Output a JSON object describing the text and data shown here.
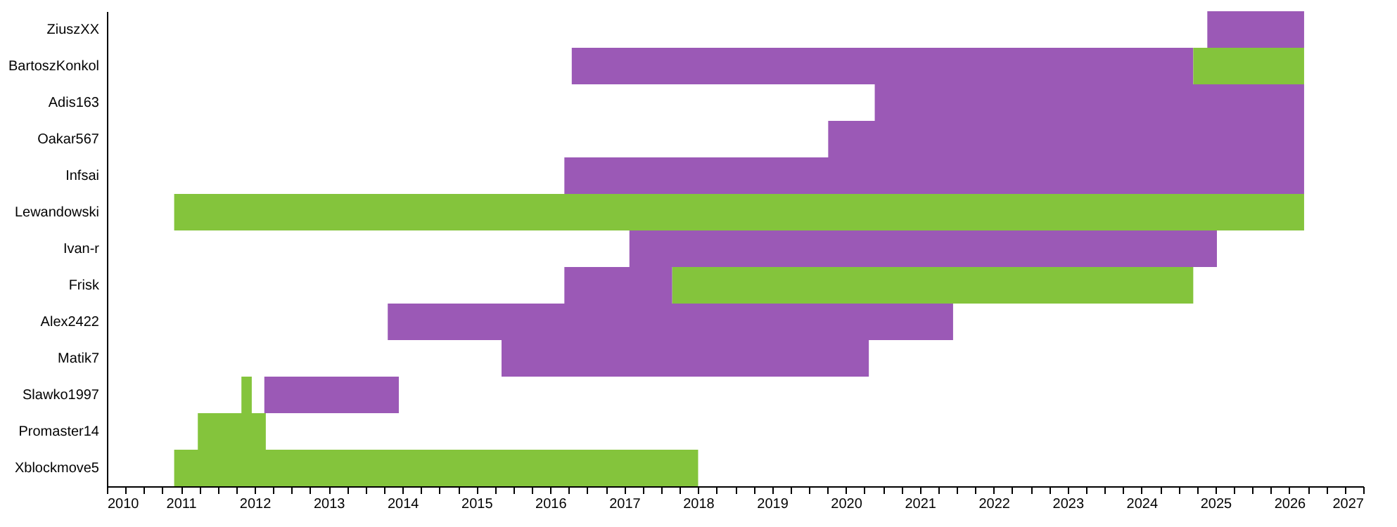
{
  "chart_data": {
    "type": "bar",
    "orientation": "horizontal",
    "categories": [
      "ZiuszXX",
      "BartoszKonkol",
      "Adis163",
      "Oakar567",
      "Infsai",
      "Lewandowski",
      "Ivan-r",
      "Frisk",
      "Alex2422",
      "Matik7",
      "Slawko1997",
      "Promaster14",
      "Xblockmove5"
    ],
    "series": [
      {
        "color": "#9b59b6",
        "base": [
          2024.89,
          2016.29,
          2020.39,
          2019.76,
          2016.19,
          null,
          2017.07,
          2016.19,
          2013.8,
          2015.34,
          2012.13,
          null,
          null
        ],
        "values": [
          1.31,
          8.41,
          5.81,
          6.44,
          10.01,
          null,
          7.95,
          1.46,
          7.65,
          4.97,
          1.82,
          null,
          null
        ]
      },
      {
        "color": "#84c43c",
        "base": [
          null,
          2024.7,
          null,
          null,
          null,
          2010.91,
          null,
          2017.65,
          null,
          null,
          2011.82,
          2011.23,
          2010.91
        ],
        "values": [
          null,
          1.5,
          null,
          null,
          null,
          15.29,
          null,
          7.05,
          null,
          null,
          0.14,
          0.92,
          7.09
        ]
      }
    ],
    "xlim": [
      2010,
      2027
    ],
    "xticks": [
      2010,
      {
        "value": 2010.25,
        "label": null
      },
      {
        "value": 2010.5,
        "label": null
      },
      {
        "value": 2010.75,
        "label": null
      },
      2011,
      {
        "value": 2011.25,
        "label": null
      },
      {
        "value": 2011.5,
        "label": null
      },
      {
        "value": 2011.75,
        "label": null
      },
      2012,
      {
        "value": 2012.25,
        "label": null
      },
      {
        "value": 2012.5,
        "label": null
      },
      {
        "value": 2012.75,
        "label": null
      },
      2013,
      {
        "value": 2013.25,
        "label": null
      },
      {
        "value": 2013.5,
        "label": null
      },
      {
        "value": 2013.75,
        "label": null
      },
      2014,
      {
        "value": 2014.25,
        "label": null
      },
      {
        "value": 2014.5,
        "label": null
      },
      {
        "value": 2014.75,
        "label": null
      },
      2015,
      {
        "value": 2015.25,
        "label": null
      },
      {
        "value": 2015.5,
        "label": null
      },
      {
        "value": 2015.75,
        "label": null
      },
      2016,
      {
        "value": 2016.25,
        "label": null
      },
      {
        "value": 2016.5,
        "label": null
      },
      {
        "value": 2016.75,
        "label": null
      },
      2017,
      {
        "value": 2017.25,
        "label": null
      },
      {
        "value": 2017.5,
        "label": null
      },
      {
        "value": 2017.75,
        "label": null
      },
      2018,
      {
        "value": 2018.25,
        "label": null
      },
      {
        "value": 2018.5,
        "label": null
      },
      {
        "value": 2018.75,
        "label": null
      },
      2019,
      {
        "value": 2019.25,
        "label": null
      },
      {
        "value": 2019.5,
        "label": null
      },
      {
        "value": 2019.75,
        "label": null
      },
      2020,
      {
        "value": 2020.25,
        "label": null
      },
      {
        "value": 2020.5,
        "label": null
      },
      {
        "value": 2020.75,
        "label": null
      },
      2021,
      {
        "value": 2021.25,
        "label": null
      },
      {
        "value": 2021.5,
        "label": null
      },
      {
        "value": 2021.75,
        "label": null
      },
      2022,
      {
        "value": 2022.25,
        "label": null
      },
      {
        "value": 2022.5,
        "label": null
      },
      {
        "value": 2022.75,
        "label": null
      },
      2023,
      {
        "value": 2023.25,
        "label": null
      },
      {
        "value": 2023.5,
        "label": null
      },
      {
        "value": 2023.75,
        "label": null
      },
      2024,
      {
        "value": 2024.25,
        "label": null
      },
      {
        "value": 2024.5,
        "label": null
      },
      {
        "value": 2024.75,
        "label": null
      },
      2025,
      {
        "value": 2025.25,
        "label": null
      },
      {
        "value": 2025.5,
        "label": null
      },
      {
        "value": 2025.75,
        "label": null
      },
      2026,
      {
        "value": 2026.25,
        "label": null
      },
      {
        "value": 2026.5,
        "label": null
      },
      {
        "value": 2026.75,
        "label": null
      },
      2027
    ],
    "grid": false
  }
}
